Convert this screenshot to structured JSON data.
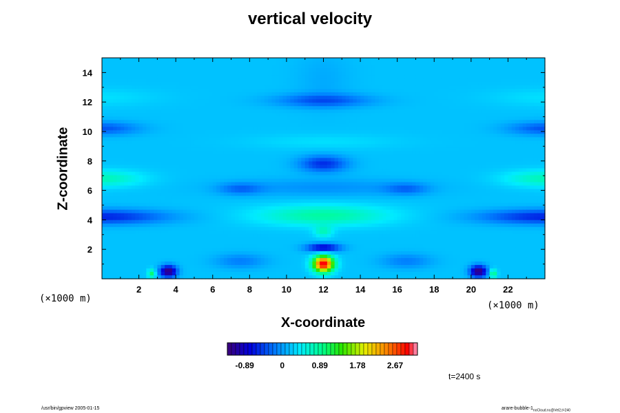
{
  "title": "vertical velocity",
  "chart_data": {
    "type": "heatmap",
    "title": "vertical velocity",
    "xlabel": "X-coordinate",
    "ylabel": "Z-coordinate",
    "x_unit": "(×1000 m)",
    "y_unit": "(×1000 m)",
    "xlim": [
      0,
      24
    ],
    "ylim": [
      0,
      15
    ],
    "x_ticks": [
      2,
      4,
      6,
      8,
      10,
      12,
      14,
      16,
      18,
      20,
      22
    ],
    "y_ticks": [
      2,
      4,
      6,
      8,
      10,
      12,
      14
    ],
    "colorbar": {
      "ticks": [
        "-0.89",
        "0",
        "0.89",
        "1.78",
        "2.67"
      ],
      "tick_values": [
        -0.89,
        0,
        0.89,
        1.78,
        2.67
      ],
      "range": [
        -1.3,
        3.2
      ]
    },
    "features": [
      {
        "x": 12,
        "z": 1.1,
        "value": 3.0,
        "desc": "central updraft maximum"
      },
      {
        "x": 12,
        "z": 2.1,
        "value": -0.85,
        "desc": "dark blue band above updraft"
      },
      {
        "x": 12,
        "z": 4.2,
        "value": 0.9,
        "desc": "green lobe"
      },
      {
        "x": 12,
        "z": 7.8,
        "value": -0.65,
        "desc": "downdraft aloft"
      },
      {
        "x": 12,
        "z": 12.1,
        "value": -0.45,
        "desc": "weak downdraft near top"
      },
      {
        "x": 3.5,
        "z": 0.5,
        "value": -1.1,
        "desc": "low-level downdraft (left)"
      },
      {
        "x": 20.5,
        "z": 0.5,
        "value": -1.1,
        "desc": "low-level downdraft (right)"
      },
      {
        "x": 2.7,
        "z": 0.4,
        "value": 0.9,
        "desc": "small updraft (left)"
      },
      {
        "x": 21.2,
        "z": 0.4,
        "value": 0.9,
        "desc": "small updraft (right)"
      },
      {
        "x": 0.5,
        "z": 6.8,
        "value": 0.55,
        "desc": "cyan band (left edge)"
      },
      {
        "x": 23.5,
        "z": 6.8,
        "value": 0.55,
        "desc": "cyan band (right edge)"
      },
      {
        "x": 1.5,
        "z": 4.2,
        "value": -0.6,
        "desc": "blue band (left)"
      },
      {
        "x": 22.5,
        "z": 4.2,
        "value": -0.6,
        "desc": "blue band (right)"
      },
      {
        "x": 1,
        "z": 10.3,
        "value": -0.5,
        "desc": "blue band aloft (left)"
      },
      {
        "x": 23,
        "z": 10.3,
        "value": -0.5,
        "desc": "blue band aloft (right)"
      }
    ]
  },
  "time_label": "t=2400 s",
  "footer_left": "/usr/bin/gpview 2005-01-15",
  "footer_right": "arare-bubble-1",
  "footer_right_sub": "noCloud.nc@Vel2,t=240"
}
